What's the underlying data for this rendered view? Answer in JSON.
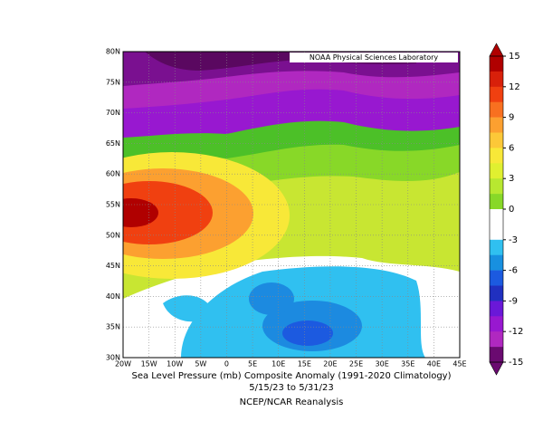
{
  "map": {
    "banner": "NOAA Physical Sciences Laboratory",
    "caption": [
      "Sea Level Pressure (mb) Composite Anomaly (1991-2020 Climatology)",
      "5/15/23  to 5/31/23",
      "NCEP/NCAR Reanalysis"
    ],
    "lon_ticks": [
      "20W",
      "15W",
      "10W",
      "5W",
      "0",
      "5E",
      "10E",
      "15E",
      "20E",
      "25E",
      "30E",
      "35E",
      "40E",
      "45E"
    ],
    "lat_ticks": [
      "30N",
      "35N",
      "40N",
      "45N",
      "50N",
      "55N",
      "60N",
      "65N",
      "70N",
      "75N",
      "80N"
    ],
    "colorbar": {
      "ticks": [
        15,
        12,
        9,
        6,
        3,
        0,
        -3,
        -6,
        -9,
        -12,
        -15
      ],
      "colors": [
        "#b00000",
        "#d8200a",
        "#f04010",
        "#f87020",
        "#fca030",
        "#fcc838",
        "#f8e838",
        "#e0f030",
        "#b8e830",
        "#88d828",
        "#ffffff",
        "#ffffff",
        "#30c0f0",
        "#1890e0",
        "#1c5ae0",
        "#2030c0",
        "#6a18d8",
        "#9818d0",
        "#b028c0",
        "#6a0a70"
      ]
    }
  }
}
